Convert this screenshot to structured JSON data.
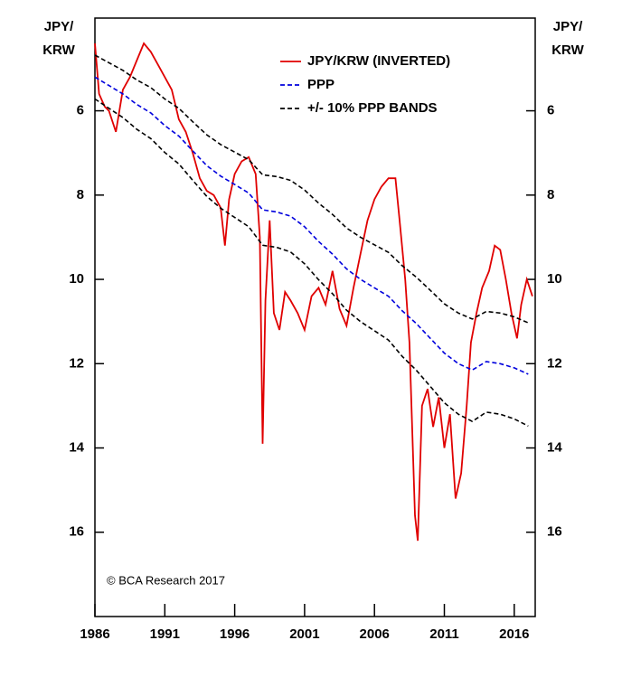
{
  "chart_data": {
    "type": "line",
    "y_label": [
      "JPY/",
      "KRW"
    ],
    "y2_label": [
      "JPY/",
      "KRW"
    ],
    "annotation": "© BCA Research 2017",
    "inverted": true,
    "xlim": [
      1986,
      2017.5
    ],
    "xticks": [
      1986,
      1991,
      1996,
      2001,
      2006,
      2011,
      2016
    ],
    "ylim": [
      3.8,
      18
    ],
    "yticks": [
      6,
      8,
      10,
      12,
      14,
      16
    ],
    "y2lim": [
      3.8,
      18
    ],
    "y2ticks": [
      6,
      8,
      10,
      12,
      14,
      16
    ],
    "series": [
      {
        "name": "JPY/KRW (INVERTED)",
        "color": "#e00000",
        "dashed": false,
        "x": [
          1986.0,
          1986.3,
          1986.7,
          1987,
          1987.5,
          1988,
          1988.5,
          1989,
          1989.5,
          1990,
          1990.5,
          1991,
          1991.5,
          1992,
          1992.5,
          1993,
          1993.5,
          1994,
          1994.5,
          1995,
          1995.3,
          1995.6,
          1996,
          1996.5,
          1997,
          1997.5,
          1997.8,
          1998.0,
          1998.2,
          1998.5,
          1998.8,
          1999.2,
          1999.6,
          2000,
          2000.5,
          2001,
          2001.5,
          2002,
          2002.5,
          2003,
          2003.5,
          2004,
          2004.5,
          2005,
          2005.5,
          2006,
          2006.5,
          2007,
          2007.5,
          2007.8,
          2008.2,
          2008.5,
          2008.9,
          2009.1,
          2009.4,
          2009.8,
          2010.2,
          2010.6,
          2011,
          2011.4,
          2011.8,
          2012.2,
          2012.6,
          2012.9,
          2013.3,
          2013.7,
          2014.2,
          2014.6,
          2015.0,
          2015.4,
          2015.8,
          2016.2,
          2016.5,
          2016.9,
          2017.3
        ],
        "values": [
          4.4,
          5.6,
          5.9,
          6.0,
          6.5,
          5.5,
          5.2,
          4.8,
          4.4,
          4.6,
          4.9,
          5.2,
          5.5,
          6.2,
          6.5,
          7.0,
          7.6,
          7.9,
          8.0,
          8.3,
          9.2,
          8.1,
          7.5,
          7.2,
          7.1,
          7.5,
          9.0,
          13.9,
          10.5,
          8.6,
          10.8,
          11.2,
          10.3,
          10.5,
          10.8,
          11.2,
          10.4,
          10.2,
          10.6,
          9.8,
          10.7,
          11.1,
          10.2,
          9.4,
          8.6,
          8.1,
          7.8,
          7.6,
          7.6,
          8.6,
          10.0,
          11.5,
          15.6,
          16.2,
          13.0,
          12.6,
          13.5,
          12.8,
          14.0,
          13.2,
          15.2,
          14.6,
          13.0,
          11.5,
          10.8,
          10.2,
          9.8,
          9.2,
          9.3,
          10.0,
          10.8,
          11.4,
          10.6,
          10.0,
          10.4
        ]
      },
      {
        "name": "PPP",
        "color": "#0000dd",
        "dashed": true,
        "x": [
          1986,
          1987,
          1988,
          1989,
          1990,
          1991,
          1992,
          1993,
          1994,
          1995,
          1996,
          1997,
          1998,
          1999,
          2000,
          2001,
          2002,
          2003,
          2004,
          2005,
          2006,
          2007,
          2008,
          2009,
          2010,
          2011,
          2012,
          2013,
          2014,
          2015,
          2016,
          2017
        ],
        "values": [
          5.2,
          5.4,
          5.6,
          5.85,
          6.05,
          6.35,
          6.6,
          6.95,
          7.3,
          7.55,
          7.75,
          7.95,
          8.35,
          8.4,
          8.5,
          8.75,
          9.1,
          9.4,
          9.75,
          10.0,
          10.2,
          10.4,
          10.75,
          11.05,
          11.4,
          11.75,
          12.0,
          12.15,
          11.95,
          12.0,
          12.1,
          12.25
        ]
      },
      {
        "name": "+/- 10% PPP BANDS",
        "color": "#000000",
        "dashed": true,
        "x": [
          1986,
          1987,
          1988,
          1989,
          1990,
          1991,
          1992,
          1993,
          1994,
          1995,
          1996,
          1997,
          1998,
          1999,
          2000,
          2001,
          2002,
          2003,
          2004,
          2005,
          2006,
          2007,
          2008,
          2009,
          2010,
          2011,
          2012,
          2013,
          2014,
          2015,
          2016,
          2017
        ],
        "values": [
          4.68,
          4.86,
          5.04,
          5.27,
          5.45,
          5.72,
          5.94,
          6.26,
          6.57,
          6.8,
          6.98,
          7.16,
          7.52,
          7.56,
          7.65,
          7.88,
          8.19,
          8.46,
          8.78,
          9.0,
          9.18,
          9.36,
          9.68,
          9.95,
          10.26,
          10.58,
          10.8,
          10.94,
          10.76,
          10.8,
          10.89,
          11.03
        ]
      },
      {
        "name": null,
        "color": "#000000",
        "dashed": true,
        "x": [
          1986,
          1987,
          1988,
          1989,
          1990,
          1991,
          1992,
          1993,
          1994,
          1995,
          1996,
          1997,
          1998,
          1999,
          2000,
          2001,
          2002,
          2003,
          2004,
          2005,
          2006,
          2007,
          2008,
          2009,
          2010,
          2011,
          2012,
          2013,
          2014,
          2015,
          2016,
          2017
        ],
        "values": [
          5.72,
          5.94,
          6.16,
          6.44,
          6.66,
          6.99,
          7.26,
          7.65,
          8.03,
          8.31,
          8.53,
          8.75,
          9.19,
          9.24,
          9.35,
          9.63,
          10.01,
          10.34,
          10.73,
          11.0,
          11.22,
          11.44,
          11.83,
          12.16,
          12.54,
          12.93,
          13.2,
          13.37,
          13.15,
          13.2,
          13.31,
          13.48
        ]
      }
    ]
  }
}
